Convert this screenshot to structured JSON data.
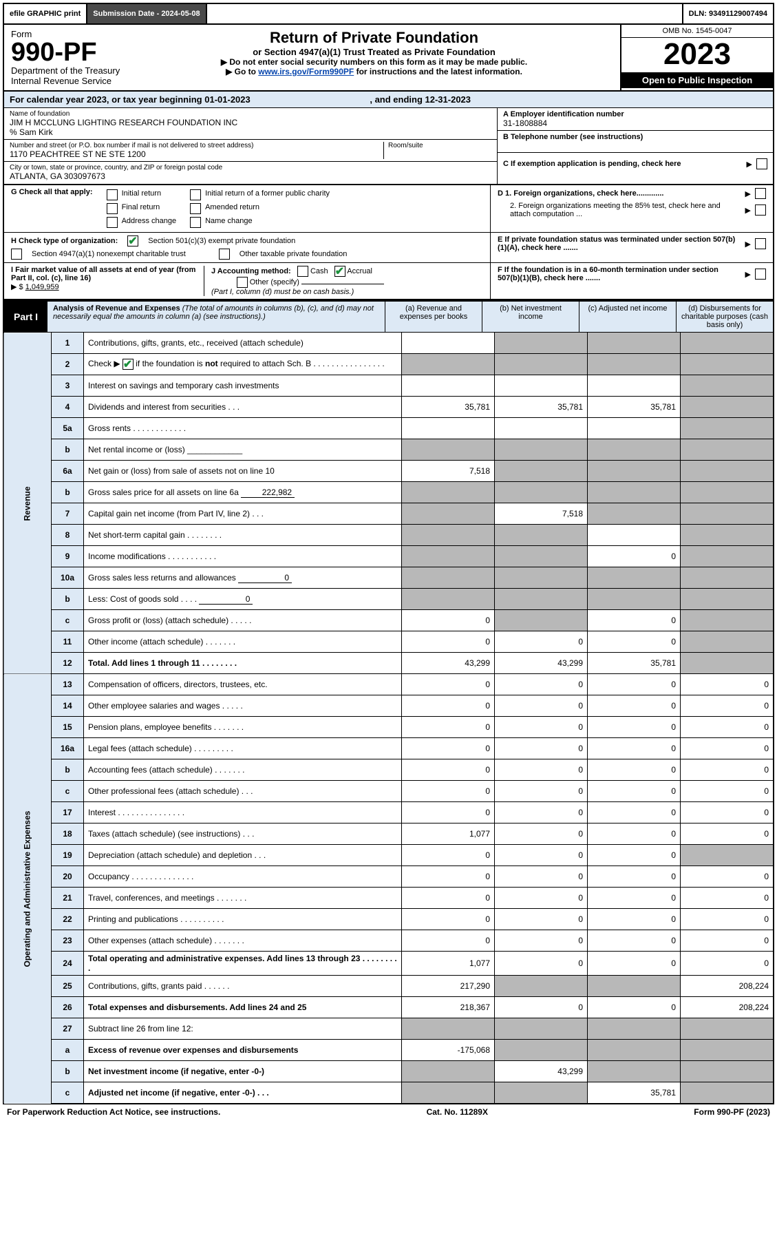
{
  "topbar": {
    "efile": "efile GRAPHIC print",
    "submission_label": "Submission Date - 2024-05-08",
    "dln_label": "DLN: 93491129007494"
  },
  "header": {
    "form_label": "Form",
    "form_number": "990-PF",
    "dept1": "Department of the Treasury",
    "dept2": "Internal Revenue Service",
    "title": "Return of Private Foundation",
    "subtitle": "or Section 4947(a)(1) Trust Treated as Private Foundation",
    "instruct1": "▶ Do not enter social security numbers on this form as it may be made public.",
    "instruct2_prefix": "▶ Go to ",
    "instruct2_link": "www.irs.gov/Form990PF",
    "instruct2_suffix": " for instructions and the latest information.",
    "omb": "OMB No. 1545-0047",
    "year": "2023",
    "open": "Open to Public Inspection"
  },
  "cal": {
    "prefix": "For calendar year 2023, or tax year beginning ",
    "begin": "01-01-2023",
    "mid": " , and ending ",
    "end": "12-31-2023"
  },
  "entity": {
    "name_lbl": "Name of foundation",
    "name_val": "JIM H MCCLUNG LIGHTING RESEARCH FOUNDATION INC",
    "care_of": "% Sam Kirk",
    "addr_lbl": "Number and street (or P.O. box number if mail is not delivered to street address)",
    "addr_val": "1170 PEACHTREE ST NE STE 1200",
    "room_lbl": "Room/suite",
    "city_lbl": "City or town, state or province, country, and ZIP or foreign postal code",
    "city_val": "ATLANTA, GA  303097673"
  },
  "right": {
    "a_lbl": "A Employer identification number",
    "a_val": "31-1808884",
    "b_lbl": "B Telephone number (see instructions)",
    "c_lbl": "C If exemption application is pending, check here",
    "d1": "D 1. Foreign organizations, check here.............",
    "d2": "2. Foreign organizations meeting the 85% test, check here and attach computation ...",
    "e": "E  If private foundation status was terminated under section 507(b)(1)(A), check here .......",
    "f": "F  If the foundation is in a 60-month termination under section 507(b)(1)(B), check here .......",
    "arrow": "▶"
  },
  "g": {
    "label": "G Check all that apply:",
    "opts": [
      "Initial return",
      "Final return",
      "Address change",
      "Initial return of a former public charity",
      "Amended return",
      "Name change"
    ]
  },
  "h": {
    "label": "H Check type of organization:",
    "o1": "Section 501(c)(3) exempt private foundation",
    "o2": "Section 4947(a)(1) nonexempt charitable trust",
    "o3": "Other taxable private foundation"
  },
  "i": {
    "label": "I Fair market value of all assets at end of year (from Part II, col. (c), line 16)",
    "arrow": "▶ $",
    "val": "1,049,959"
  },
  "j": {
    "label": "J Accounting method:",
    "cash": "Cash",
    "accrual": "Accrual",
    "other": "Other (specify)",
    "note": "(Part I, column (d) must be on cash basis.)"
  },
  "part1": {
    "label": "Part I",
    "title": "Analysis of Revenue and Expenses",
    "note": " (The total of amounts in columns (b), (c), and (d) may not necessarily equal the amounts in column (a) (see instructions).)",
    "col_a": "(a)   Revenue and expenses per books",
    "col_b": "(b)   Net investment income",
    "col_c": "(c)   Adjusted net income",
    "col_d": "(d)  Disbursements for charitable purposes (cash basis only)"
  },
  "side": {
    "revenue": "Revenue",
    "expenses": "Operating and Administrative Expenses"
  },
  "rows": [
    {
      "n": "1",
      "d": "Contributions, gifts, grants, etc., received (attach schedule)",
      "a": "",
      "b": "g",
      "c": "g",
      "dd": "g"
    },
    {
      "n": "2",
      "d": "Check ▶ [x] if the foundation is not required to attach Sch. B   .   .   .   .   .   .   .   .   .   .   .   .   .   .   .   .",
      "a": "g",
      "b": "g",
      "c": "g",
      "dd": "g",
      "checkbox": true
    },
    {
      "n": "3",
      "d": "Interest on savings and temporary cash investments",
      "a": "",
      "b": "",
      "c": "",
      "dd": "g"
    },
    {
      "n": "4",
      "d": "Dividends and interest from securities    .    .    .",
      "a": "35,781",
      "b": "35,781",
      "c": "35,781",
      "dd": "g"
    },
    {
      "n": "5a",
      "d": "Gross rents    .    .    .    .    .    .    .    .    .    .    .    .",
      "a": "",
      "b": "",
      "c": "",
      "dd": "g"
    },
    {
      "n": "b",
      "d": "Net rental income or (loss)  ____________",
      "a": "g",
      "b": "g",
      "c": "g",
      "dd": "g"
    },
    {
      "n": "6a",
      "d": "Net gain or (loss) from sale of assets not on line 10",
      "a": "7,518",
      "b": "g",
      "c": "g",
      "dd": "g"
    },
    {
      "n": "b",
      "d": "Gross sales price for all assets on line 6a",
      "inline": "222,982",
      "a": "g",
      "b": "g",
      "c": "g",
      "dd": "g"
    },
    {
      "n": "7",
      "d": "Capital gain net income (from Part IV, line 2)    .    .    .",
      "a": "g",
      "b": "7,518",
      "c": "g",
      "dd": "g"
    },
    {
      "n": "8",
      "d": "Net short-term capital gain   .   .   .   .   .   .   .   .",
      "a": "g",
      "b": "g",
      "c": "",
      "dd": "g"
    },
    {
      "n": "9",
      "d": "Income modifications  .   .   .   .   .   .   .   .   .   .   .",
      "a": "g",
      "b": "g",
      "c": "0",
      "dd": "g"
    },
    {
      "n": "10a",
      "d": "Gross sales less returns and allowances",
      "inline": "0",
      "a": "g",
      "b": "g",
      "c": "g",
      "dd": "g"
    },
    {
      "n": "b",
      "d": "Less: Cost of goods sold     .    .    .    .",
      "inline": "0",
      "a": "g",
      "b": "g",
      "c": "g",
      "dd": "g"
    },
    {
      "n": "c",
      "d": "Gross profit or (loss) (attach schedule)     .    .    .    .    .",
      "a": "0",
      "b": "g",
      "c": "0",
      "dd": "g"
    },
    {
      "n": "11",
      "d": "Other income (attach schedule)    .    .    .    .    .    .    .",
      "a": "0",
      "b": "0",
      "c": "0",
      "dd": "g"
    },
    {
      "n": "12",
      "d": "Total. Add lines 1 through 11   .   .   .   .   .   .   .   .",
      "bold": true,
      "a": "43,299",
      "b": "43,299",
      "c": "35,781",
      "dd": "g"
    },
    {
      "n": "13",
      "d": "Compensation of officers, directors, trustees, etc.",
      "a": "0",
      "b": "0",
      "c": "0",
      "dd": "0"
    },
    {
      "n": "14",
      "d": "Other employee salaries and wages    .    .    .    .    .",
      "a": "0",
      "b": "0",
      "c": "0",
      "dd": "0"
    },
    {
      "n": "15",
      "d": "Pension plans, employee benefits   .   .   .   .   .   .   .",
      "a": "0",
      "b": "0",
      "c": "0",
      "dd": "0"
    },
    {
      "n": "16a",
      "d": "Legal fees (attach schedule)  .   .   .   .   .   .   .   .   .",
      "a": "0",
      "b": "0",
      "c": "0",
      "dd": "0"
    },
    {
      "n": "b",
      "d": "Accounting fees (attach schedule)  .   .   .   .   .   .   .",
      "a": "0",
      "b": "0",
      "c": "0",
      "dd": "0"
    },
    {
      "n": "c",
      "d": "Other professional fees (attach schedule)    .    .    .",
      "a": "0",
      "b": "0",
      "c": "0",
      "dd": "0"
    },
    {
      "n": "17",
      "d": "Interest   .   .   .   .   .   .   .   .   .   .   .   .   .   .   .",
      "a": "0",
      "b": "0",
      "c": "0",
      "dd": "0"
    },
    {
      "n": "18",
      "d": "Taxes (attach schedule) (see instructions)     .    .    .",
      "a": "1,077",
      "b": "0",
      "c": "0",
      "dd": "0"
    },
    {
      "n": "19",
      "d": "Depreciation (attach schedule) and depletion    .    .    .",
      "a": "0",
      "b": "0",
      "c": "0",
      "dd": "g"
    },
    {
      "n": "20",
      "d": "Occupancy  .   .   .   .   .   .   .   .   .   .   .   .   .   .",
      "a": "0",
      "b": "0",
      "c": "0",
      "dd": "0"
    },
    {
      "n": "21",
      "d": "Travel, conferences, and meetings  .   .   .   .   .   .   .",
      "a": "0",
      "b": "0",
      "c": "0",
      "dd": "0"
    },
    {
      "n": "22",
      "d": "Printing and publications  .   .   .   .   .   .   .   .   .   .",
      "a": "0",
      "b": "0",
      "c": "0",
      "dd": "0"
    },
    {
      "n": "23",
      "d": "Other expenses (attach schedule)  .   .   .   .   .   .   .",
      "a": "0",
      "b": "0",
      "c": "0",
      "dd": "0"
    },
    {
      "n": "24",
      "d": "Total operating and administrative expenses. Add lines 13 through 23   .   .   .   .   .   .   .   .   .",
      "bold": true,
      "a": "1,077",
      "b": "0",
      "c": "0",
      "dd": "0"
    },
    {
      "n": "25",
      "d": "Contributions, gifts, grants paid     .    .    .    .    .    .",
      "a": "217,290",
      "b": "g",
      "c": "g",
      "dd": "208,224"
    },
    {
      "n": "26",
      "d": "Total expenses and disbursements. Add lines 24 and 25",
      "bold": true,
      "a": "218,367",
      "b": "0",
      "c": "0",
      "dd": "208,224"
    },
    {
      "n": "27",
      "d": "Subtract line 26 from line 12:",
      "a": "g",
      "b": "g",
      "c": "g",
      "dd": "g"
    },
    {
      "n": "a",
      "d": "Excess of revenue over expenses and disbursements",
      "bold": true,
      "a": "-175,068",
      "b": "g",
      "c": "g",
      "dd": "g"
    },
    {
      "n": "b",
      "d": "Net investment income (if negative, enter -0-)",
      "bold": true,
      "a": "g",
      "b": "43,299",
      "c": "g",
      "dd": "g"
    },
    {
      "n": "c",
      "d": "Adjusted net income (if negative, enter -0-)    .    .    .",
      "bold": true,
      "a": "g",
      "b": "g",
      "c": "35,781",
      "dd": "g"
    }
  ],
  "footer": {
    "left": "For Paperwork Reduction Act Notice, see instructions.",
    "mid": "Cat. No. 11289X",
    "right": "Form 990-PF (2023)"
  },
  "colors": {
    "blue_bg": "#dde9f5",
    "grey_cell": "#b8b8b8",
    "link": "#0645ad",
    "check_green": "#1a8f3a"
  }
}
